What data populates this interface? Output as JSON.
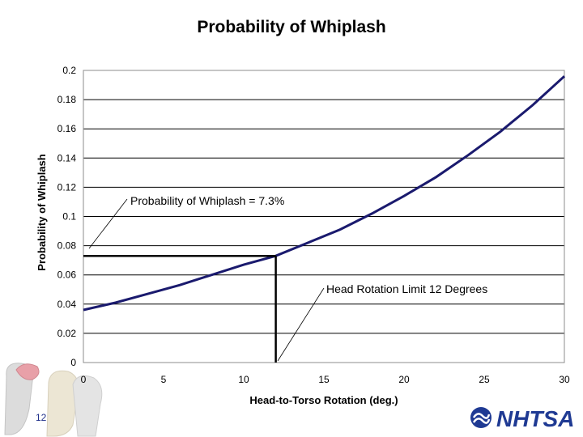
{
  "slide": {
    "title": "Probability of Whiplash",
    "page_number": "12",
    "logo_text": "NHTSA"
  },
  "colors": {
    "curve": "#1a1a6e",
    "marker": "#000000",
    "grid": "#000000",
    "logo": "#1f3a93"
  },
  "chart_data": {
    "type": "line",
    "title": "",
    "xlabel": "Head-to-Torso Rotation (deg.)",
    "ylabel": "Probability of Whiplash",
    "xlim": [
      0,
      30
    ],
    "ylim": [
      0,
      0.2
    ],
    "x_ticks": [
      0,
      5,
      10,
      15,
      20,
      25,
      30
    ],
    "y_ticks": [
      0,
      0.02,
      0.04,
      0.06,
      0.08,
      0.1,
      0.12,
      0.14,
      0.16,
      0.18,
      0.2
    ],
    "grid": "horizontal",
    "series": [
      {
        "x": [
          0,
          2,
          4,
          6,
          8,
          10,
          12,
          14,
          16,
          18,
          20,
          22,
          24,
          26,
          28,
          30
        ],
        "y": [
          0.036,
          0.041,
          0.047,
          0.053,
          0.06,
          0.067,
          0.073,
          0.082,
          0.091,
          0.102,
          0.114,
          0.127,
          0.142,
          0.158,
          0.176,
          0.196
        ]
      }
    ],
    "markers": {
      "x": 12,
      "y": 0.073
    },
    "annotations": [
      {
        "text": "Probability of Whiplash = 7.3%",
        "target": "y-marker"
      },
      {
        "text": "Head Rotation Limit 12 Degrees",
        "target": "x-marker"
      }
    ]
  }
}
